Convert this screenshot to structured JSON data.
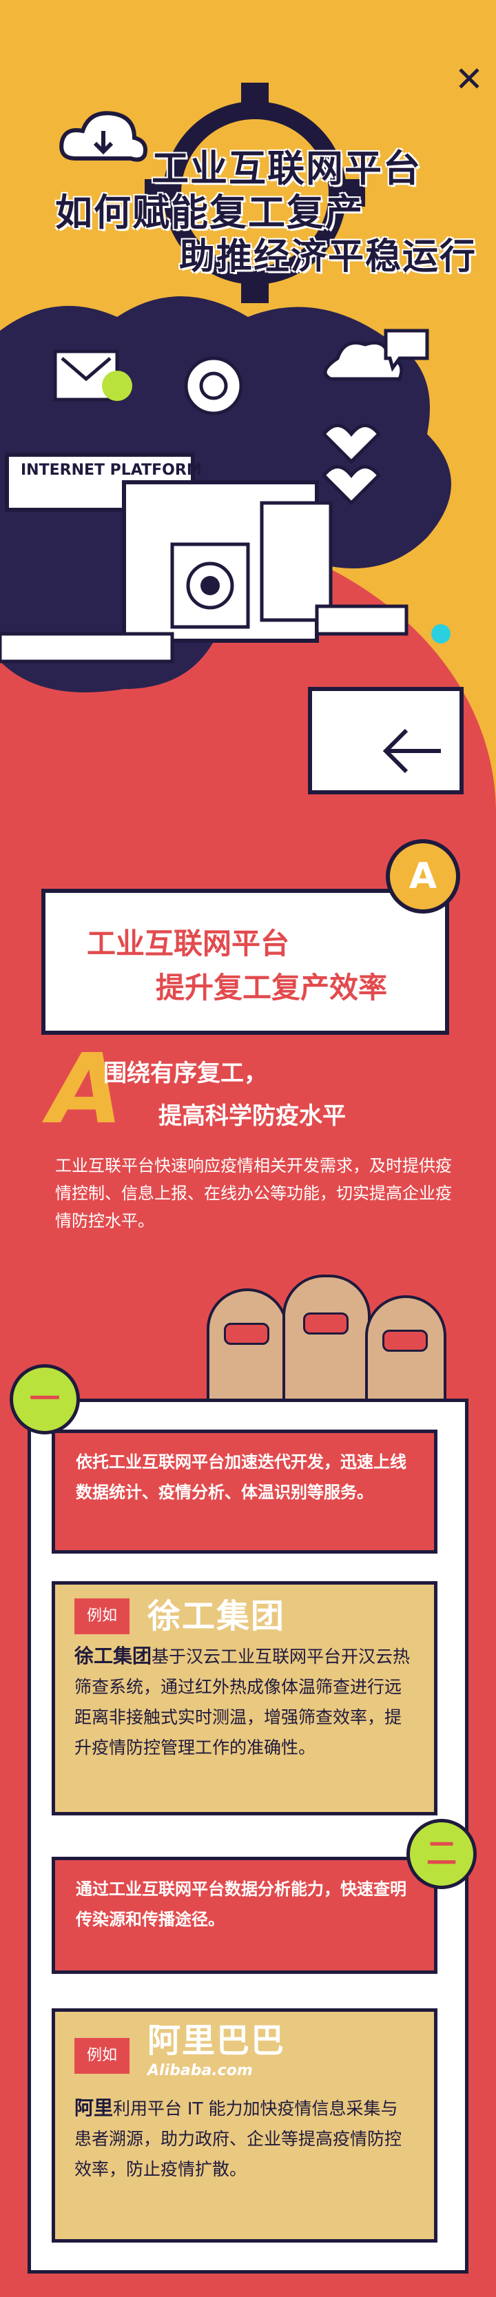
{
  "header": {
    "title_line1": "工业互联网平台",
    "title_line2": "如何赋能复工复产",
    "title_line3": "助推经济平稳运行",
    "close_symbol": "✕",
    "platform_label": "INTERNET PLATFORM"
  },
  "section": {
    "badge_letter": "A",
    "banner_line1": "工业互联网平台",
    "banner_line2": "提升复工复产效率",
    "big_letter": "A",
    "subtitle_line1": "围绕有序复工，",
    "subtitle_line2": "提高科学防疫水平",
    "paragraph": "工业互联平台快速响应疫情相关开发需求，及时提供疫情控制、信息上报、在线办公等功能，切实提高企业疫情防控水平。"
  },
  "items": [
    {
      "badge": "一",
      "summary": "依托工业互联网平台加速迭代开发，迅速上线数据统计、疫情分析、体温识别等服务。",
      "example_tag": "例如",
      "logo": "徐工集团",
      "company": "徐工集团",
      "detail": "基于汉云工业互联网平台开汉云热筛查系统，通过红外热成像体温筛查进行远距离非接触式实时测温，增强筛查效率，提升疫情防控管理工作的准确性。"
    },
    {
      "badge": "二",
      "summary": "通过工业互联网平台数据分析能力，快速查明传染源和传播途径。",
      "example_tag": "例如",
      "logo": "阿里巴巴",
      "logo_sub": "Alibaba.com",
      "company": "阿里",
      "detail": "利用平台 IT 能力加快疫情信息采集与患者溯源，助力政府、企业等提高疫情防控效率，防止疫情扩散。"
    }
  ],
  "colors": {
    "yellow": "#f2b63a",
    "red": "#e24b4e",
    "navy": "#1f1a3d",
    "tan": "#e9c880",
    "lime": "#b9e23d"
  }
}
